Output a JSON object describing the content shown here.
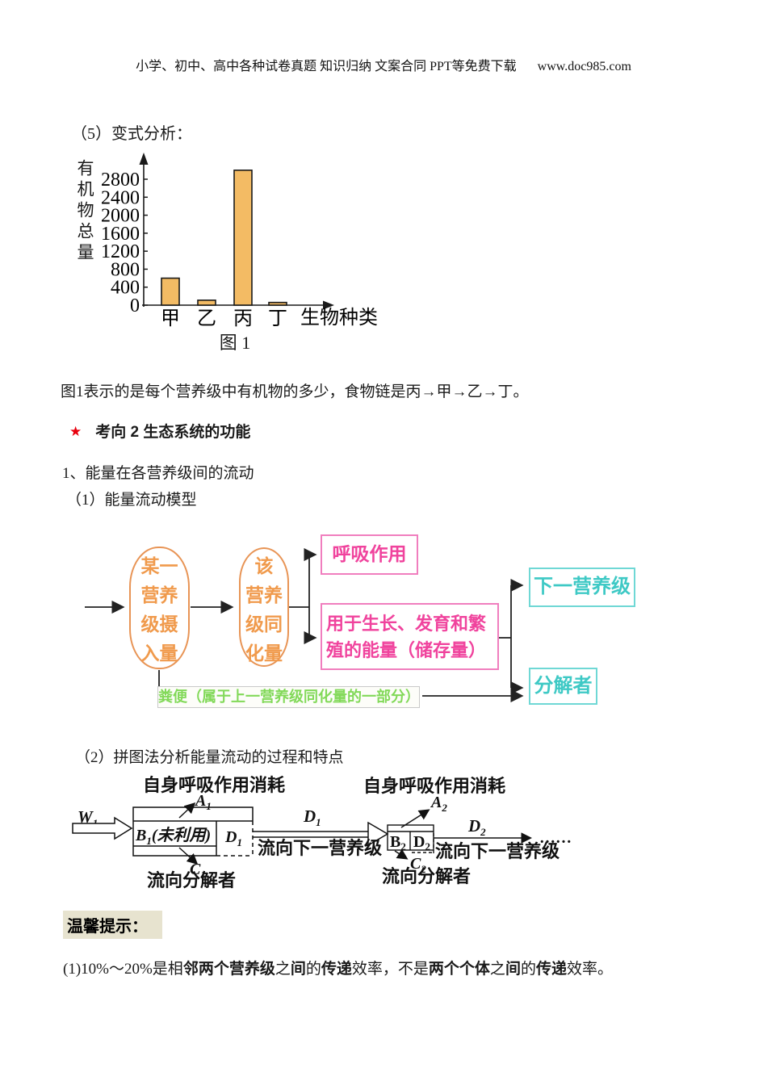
{
  "header": {
    "text": "小学、初中、高中各种试卷真题 知识归纳 文案合同 PPT等免费下载",
    "url": "www.doc985.com"
  },
  "sections": {
    "variant_label": "（5）变式分析：",
    "para1": "图1表示的是每个营养级中有机物的多少，食物链是丙→甲→乙→丁。",
    "focus_star": "★",
    "focus_title": "考向 2 生态系统的功能",
    "item1": "1、能量在各营养级间的流动",
    "item1_1": "（1）能量流动模型",
    "item1_2": "（2）拼图法分析能量流动的过程和特点"
  },
  "chart_data": {
    "type": "bar",
    "categories": [
      "甲",
      "乙",
      "丙",
      "丁"
    ],
    "values": [
      600,
      110,
      3000,
      60
    ],
    "title": "图 1",
    "caption": "图 1",
    "xlabel": "生物种类",
    "ylabel": "有机物总量",
    "yticks": [
      0,
      400,
      800,
      1200,
      1600,
      2000,
      2400,
      2800
    ],
    "ylim": [
      0,
      3000
    ],
    "grid": false,
    "bar_color": "#f3bb64",
    "bar_border": "#1a1a1a"
  },
  "flow": {
    "oval1_lines": [
      "某一",
      "营养",
      "级摄",
      "入量"
    ],
    "oval2_lines": [
      "该",
      "营养",
      "级同",
      "化量"
    ],
    "respiration": "呼吸作用",
    "growth": "用于生长、发育和繁殖的能量（储存量）",
    "next_level": "下一营养级",
    "decomposer": "分解者",
    "feces": "粪便（属于上一营养级同化量的一部分）",
    "colors": {
      "orange_border": "#e89455",
      "orange_text": "#f09a4c",
      "pink_border": "#f07ebe",
      "pink_text": "#f0439d",
      "teal_border": "#6fd8d5",
      "teal_text": "#3ec9c5",
      "green_text": "#82d959"
    }
  },
  "puzzle": {
    "resp1": "自身呼吸作用消耗",
    "resp2": "自身呼吸作用消耗",
    "w1": {
      "b": "W",
      "s": "1"
    },
    "a1": {
      "b": "A",
      "s": "1"
    },
    "b1": {
      "b": "B",
      "s": "1",
      "rest": "(未利用)"
    },
    "d1_cell": {
      "b": "D",
      "s": "1"
    },
    "c1": {
      "b": "C",
      "s": "1"
    },
    "d1_arrow": {
      "b": "D",
      "s": "1"
    },
    "flow_next1": "流向下一营养级",
    "flow_decomp1": "流向分解者",
    "b2": {
      "b": "B",
      "s": "2"
    },
    "d2_cell": {
      "b": "D",
      "s": "2"
    },
    "a2": {
      "b": "A",
      "s": "2"
    },
    "c2": {
      "b": "C",
      "s": "2"
    },
    "d2_arrow": {
      "b": "D",
      "s": "2"
    },
    "flow_next2": "流向下一营养级",
    "flow_decomp2": "流向分解者",
    "ellipsis": "……"
  },
  "tips": {
    "label": "温馨提示：",
    "segments": [
      {
        "t": "(1)10%～20%是相",
        "c": "seg"
      },
      {
        "t": "邻两个营养级",
        "c": "seg b"
      },
      {
        "t": "之",
        "c": "seg"
      },
      {
        "t": "间",
        "c": "seg b"
      },
      {
        "t": "的",
        "c": "seg"
      },
      {
        "t": "传递",
        "c": "seg b"
      },
      {
        "t": "效率，不是",
        "c": "seg"
      },
      {
        "t": "两个个体",
        "c": "seg b"
      },
      {
        "t": "之",
        "c": "seg"
      },
      {
        "t": "间",
        "c": "seg b"
      },
      {
        "t": "的",
        "c": "seg"
      },
      {
        "t": "传递",
        "c": "seg b"
      },
      {
        "t": "效率。",
        "c": "seg"
      }
    ]
  }
}
